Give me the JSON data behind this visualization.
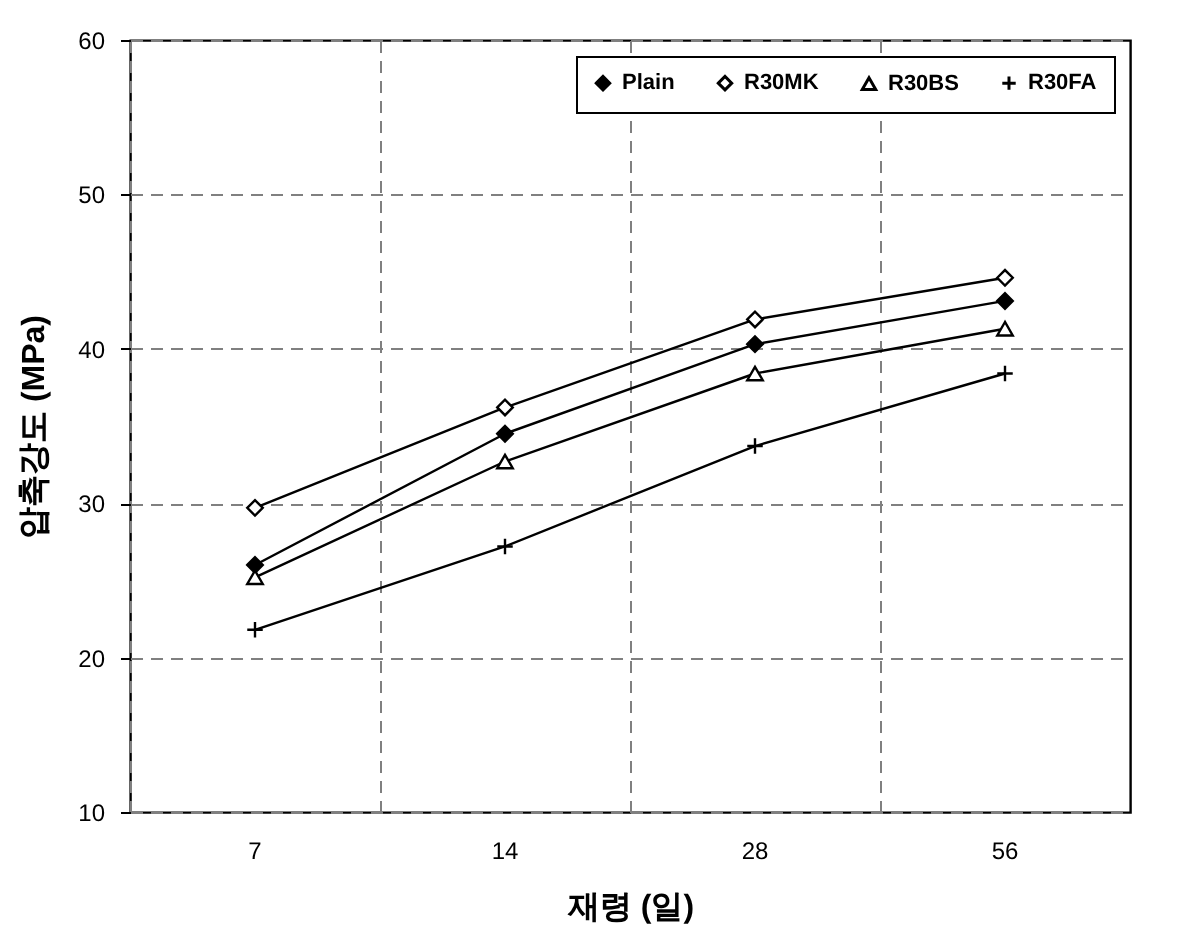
{
  "chart_data": {
    "type": "line",
    "xlabel": "재령 (일)",
    "ylabel": "압축강도 (MPa)",
    "categories": [
      "7",
      "14",
      "28",
      "56"
    ],
    "series": [
      {
        "name": "Plain",
        "color": "#000000",
        "marker": "diamond",
        "values": [
          26.0,
          34.5,
          40.3,
          43.1
        ]
      },
      {
        "name": "R30MK",
        "color": "#000000",
        "marker": "diamond",
        "values": [
          29.7,
          36.2,
          41.9,
          44.6
        ]
      },
      {
        "name": "R30BS",
        "color": "#000000",
        "marker": "triangle",
        "values": [
          25.2,
          32.7,
          38.4,
          41.3
        ]
      },
      {
        "name": "R30FA",
        "color": "#000000",
        "marker": "cross",
        "values": [
          21.8,
          27.2,
          33.7,
          38.4
        ]
      }
    ],
    "ylim": [
      10,
      60
    ],
    "yticks": [
      10,
      20,
      30,
      40,
      50,
      60
    ],
    "grid": true,
    "legend": "top right"
  }
}
